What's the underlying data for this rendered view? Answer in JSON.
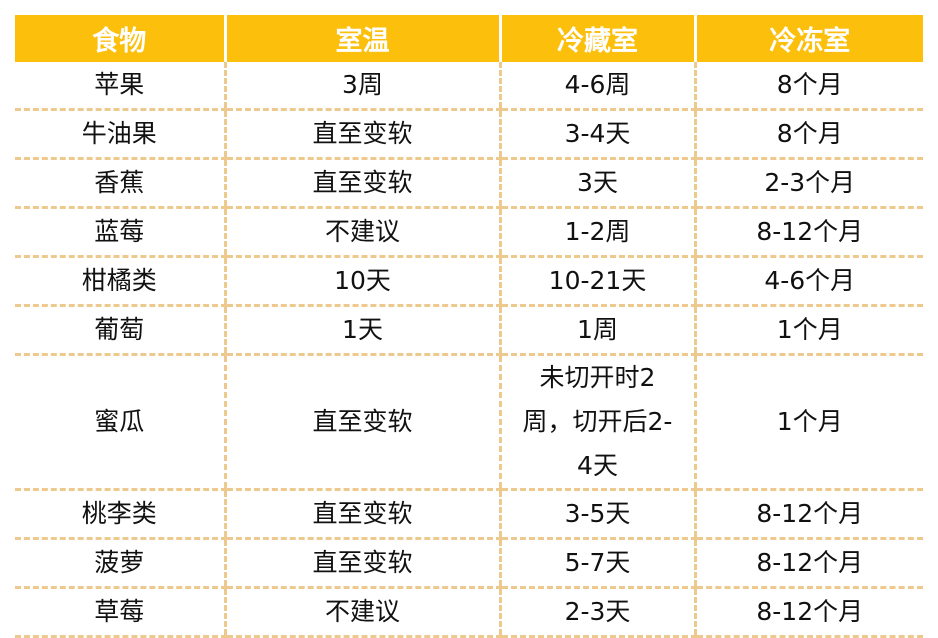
{
  "colors": {
    "header_bg": "#fbbf0c",
    "header_text": "#ffffff",
    "divider": "#eec98e"
  },
  "headers": [
    "食物",
    "室温",
    "冷藏室",
    "冷冻室"
  ],
  "rows": [
    [
      "苹果",
      "3周",
      "4-6周",
      "8个月"
    ],
    [
      "牛油果",
      "直至变软",
      "3-4天",
      "8个月"
    ],
    [
      "香蕉",
      "直至变软",
      "3天",
      "2-3个月"
    ],
    [
      "蓝莓",
      "不建议",
      "1-2周",
      "8-12个月"
    ],
    [
      "柑橘类",
      "10天",
      "10-21天",
      "4-6个月"
    ],
    [
      "葡萄",
      "1天",
      "1周",
      "1个月"
    ],
    [
      "蜜瓜",
      "直至变软",
      "未切开时2周，切开后2-4天",
      "1个月"
    ],
    [
      "桃李类",
      "直至变软",
      "3-5天",
      "8-12个月"
    ],
    [
      "菠萝",
      "直至变软",
      "5-7天",
      "8-12个月"
    ],
    [
      "草莓",
      "不建议",
      "2-3天",
      "8-12个月"
    ]
  ]
}
